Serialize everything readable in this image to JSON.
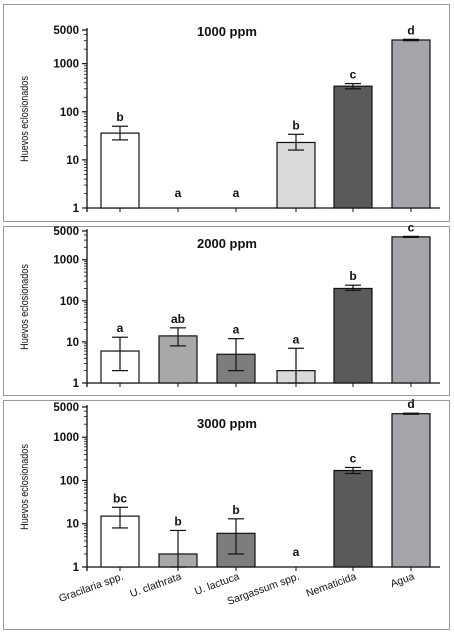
{
  "chart_data": [
    {
      "type": "bar",
      "title": "1000 ppm",
      "ylabel": "Huevos eclosionados",
      "yscale": "log",
      "ylim": [
        1,
        5000
      ],
      "yticks": [
        "1",
        "10",
        "100",
        "1000",
        "5000"
      ],
      "categories": [
        "Gracilaria spp.",
        "U. clathrata",
        "U. lactuca",
        "Sargassum spp.",
        "Nematicida",
        "Agua"
      ],
      "values": [
        36,
        null,
        null,
        23,
        340,
        3100
      ],
      "error_low": [
        26,
        null,
        null,
        16,
        300,
        3000
      ],
      "error_high": [
        50,
        null,
        null,
        34,
        385,
        3200
      ],
      "letters": [
        "b",
        "a",
        "a",
        "b",
        "c",
        "d"
      ],
      "colors": [
        "#ffffff",
        "#a8a8a8",
        "#7d7d7d",
        "#d9d9d9",
        "#5a5a5a",
        "#a4a4ab"
      ]
    },
    {
      "type": "bar",
      "title": "2000 ppm",
      "ylabel": "Huevos eclosionados",
      "yscale": "log",
      "ylim": [
        1,
        5000
      ],
      "yticks": [
        "1",
        "10",
        "100",
        "1000",
        "5000"
      ],
      "categories": [
        "Gracilaria spp.",
        "U. clathrata",
        "U. lactuca",
        "Sargassum spp.",
        "Nematicida",
        "Agua"
      ],
      "values": [
        6,
        14,
        5,
        2,
        200,
        3600
      ],
      "error_low": [
        2,
        8,
        2,
        1,
        180,
        3500
      ],
      "error_high": [
        13,
        22,
        12,
        7,
        240,
        3700
      ],
      "letters": [
        "a",
        "ab",
        "a",
        "a",
        "b",
        "c"
      ],
      "colors": [
        "#ffffff",
        "#a8a8a8",
        "#7d7d7d",
        "#d9d9d9",
        "#5a5a5a",
        "#a4a4ab"
      ]
    },
    {
      "type": "bar",
      "title": "3000 ppm",
      "ylabel": "Huevos eclosionados",
      "yscale": "log",
      "ylim": [
        1,
        5000
      ],
      "yticks": [
        "1",
        "10",
        "100",
        "1000",
        "5000"
      ],
      "categories": [
        "Gracilaria spp.",
        "U. clathrata",
        "U. lactuca",
        "Sargassum spp.",
        "Nematicida",
        "Agua"
      ],
      "values": [
        15,
        2,
        6,
        null,
        170,
        3500
      ],
      "error_low": [
        8,
        1,
        2,
        null,
        145,
        3400
      ],
      "error_high": [
        24,
        7,
        13,
        null,
        200,
        3600
      ],
      "letters": [
        "bc",
        "b",
        "b",
        "a",
        "c",
        "d"
      ],
      "colors": [
        "#ffffff",
        "#a8a8a8",
        "#7d7d7d",
        "#d9d9d9",
        "#5a5a5a",
        "#a4a4ab"
      ]
    }
  ]
}
